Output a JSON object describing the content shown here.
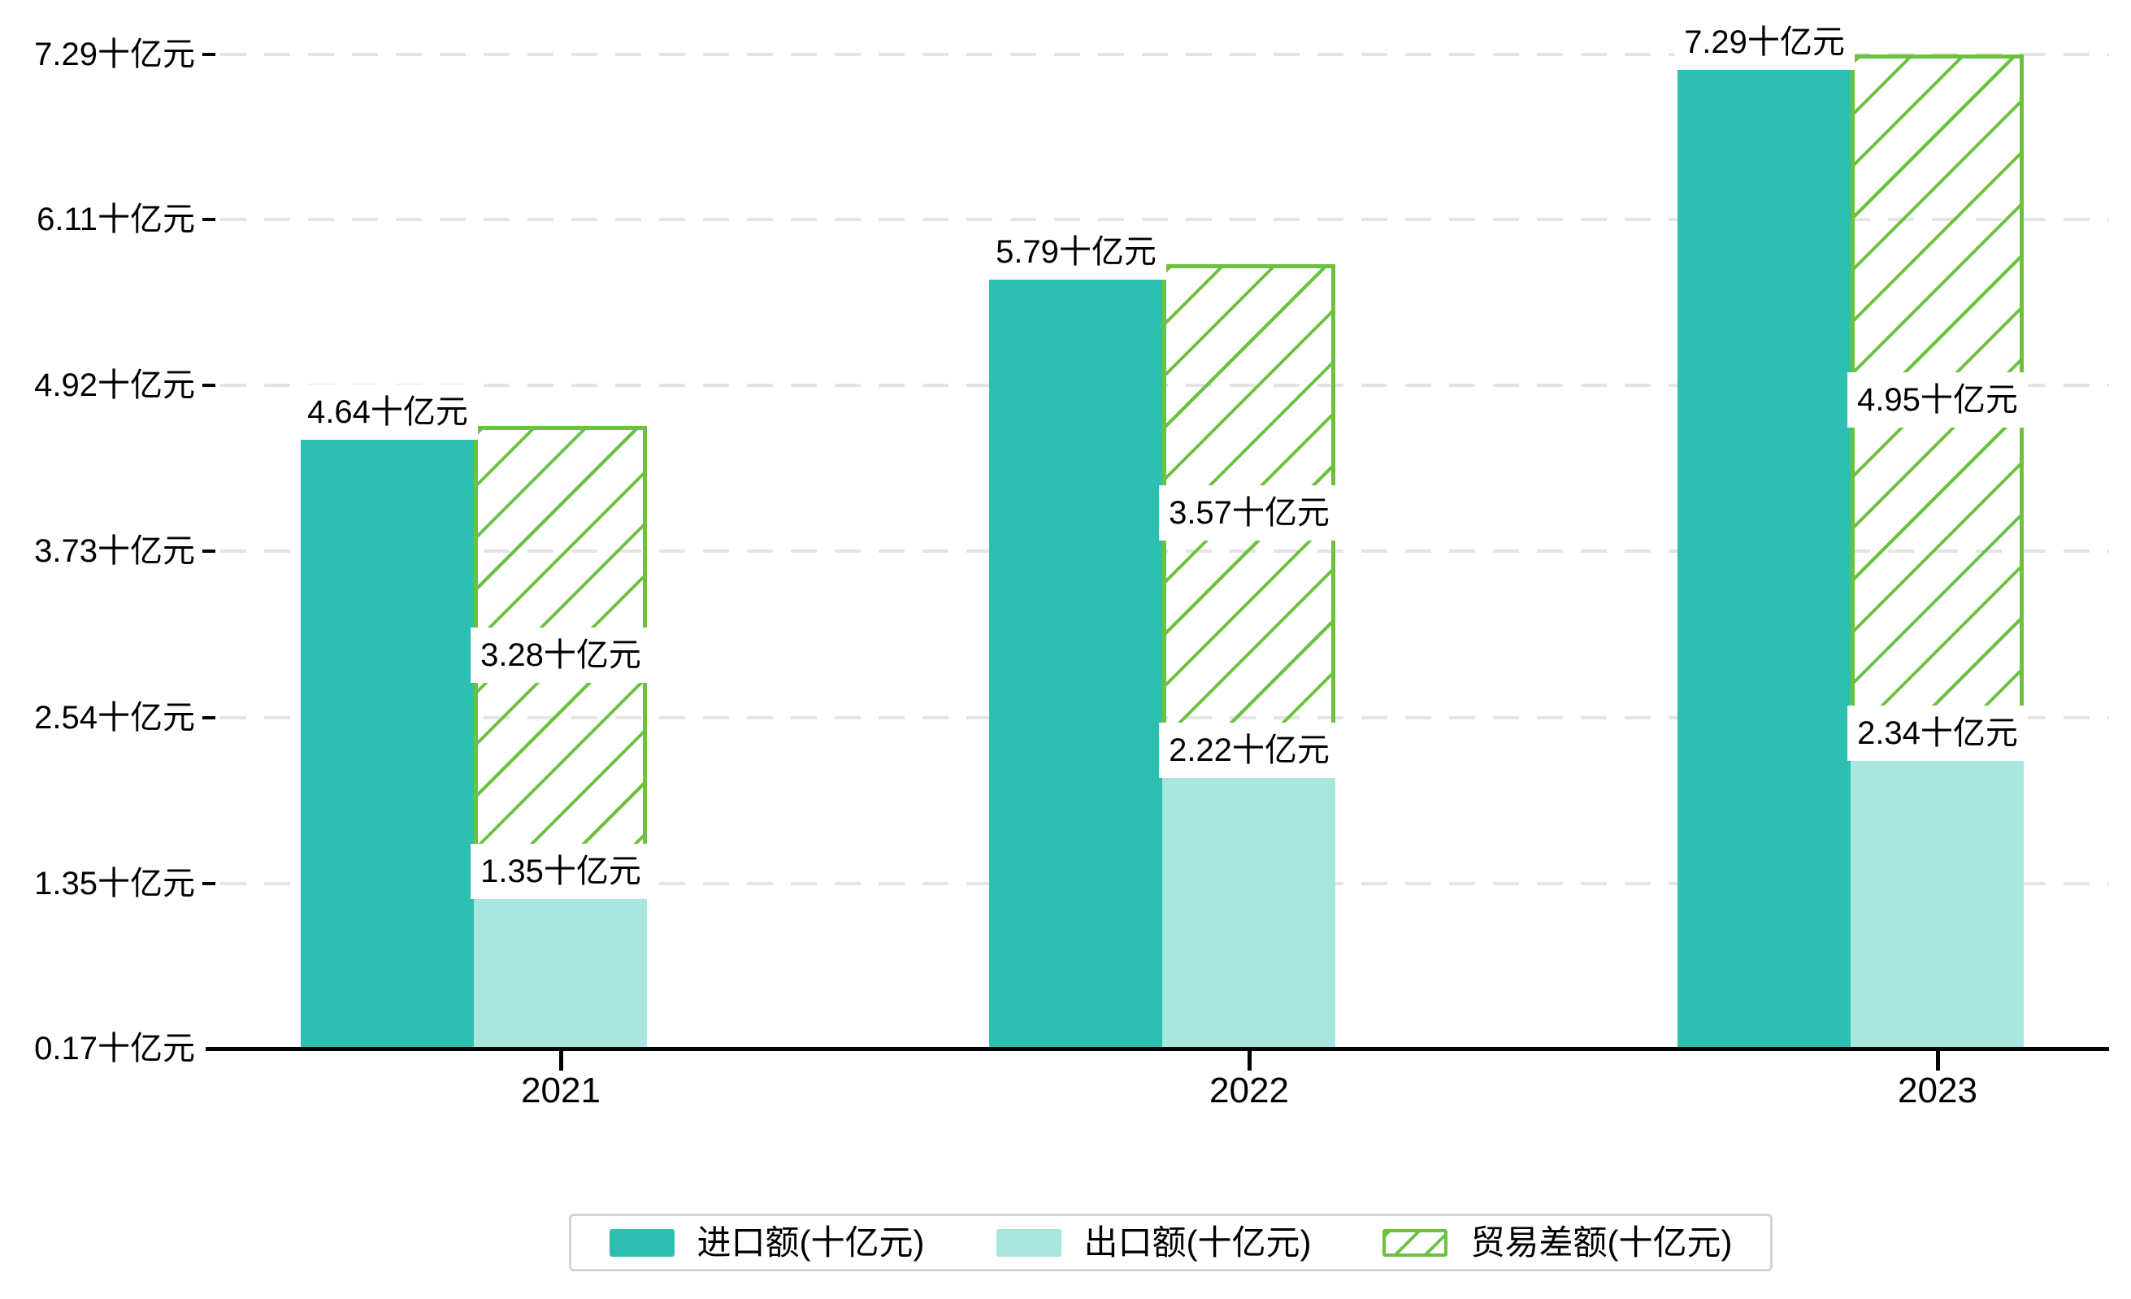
{
  "chart_data": {
    "type": "bar",
    "title": "",
    "unit": "十亿元",
    "categories": [
      "2021",
      "2022",
      "2023"
    ],
    "series": [
      {
        "name": "进口额(十亿元)",
        "key": "import",
        "style": "solid",
        "color": "#2EBFB2",
        "values": [
          4.64,
          5.79,
          7.29
        ],
        "labels": [
          "4.64十亿元",
          "5.79十亿元",
          "7.29十亿元"
        ]
      },
      {
        "name": "出口额(十亿元)",
        "key": "export",
        "style": "solid",
        "color": "#A9E6E0",
        "values": [
          1.35,
          2.22,
          2.34
        ],
        "labels": [
          "1.35十亿元",
          "2.22十亿元",
          "2.34十亿元"
        ]
      },
      {
        "name": "贸易差额(十亿元)",
        "key": "balance",
        "style": "hatched",
        "color": "#6CC13F",
        "stacked_on": "export",
        "values": [
          3.28,
          3.57,
          4.95
        ],
        "labels": [
          "3.28十亿元",
          "3.57十亿元",
          "4.95十亿元"
        ]
      }
    ],
    "y_axis": {
      "min": 0.17,
      "max": 7.29,
      "grid": "dashed",
      "tick_values": [
        0.17,
        1.35,
        2.54,
        3.73,
        4.92,
        6.11,
        7.29
      ],
      "tick_labels": [
        "0.17十亿元",
        "1.35十亿元",
        "2.54十亿元",
        "3.73十亿元",
        "4.92十亿元",
        "6.11十亿元",
        "7.29十亿元"
      ]
    },
    "x_axis": {
      "labels": [
        "2021",
        "2022",
        "2023"
      ]
    },
    "legend": {
      "position": "bottom",
      "items": [
        {
          "label": "进口额(十亿元)",
          "swatch": "solid-teal"
        },
        {
          "label": "出口额(十亿元)",
          "swatch": "solid-light-teal"
        },
        {
          "label": "贸易差额(十亿元)",
          "swatch": "hatched-green"
        }
      ]
    },
    "colors": {
      "import": "#2EBFB2",
      "export": "#A9E6E0",
      "balance": "#6CC13F",
      "axis": "#000000",
      "gridline": "#e4e4e4",
      "label_bg": "#ffffff",
      "label_text": "#000000",
      "legend_border": "#d4d4d4",
      "background": "#ffffff"
    }
  }
}
